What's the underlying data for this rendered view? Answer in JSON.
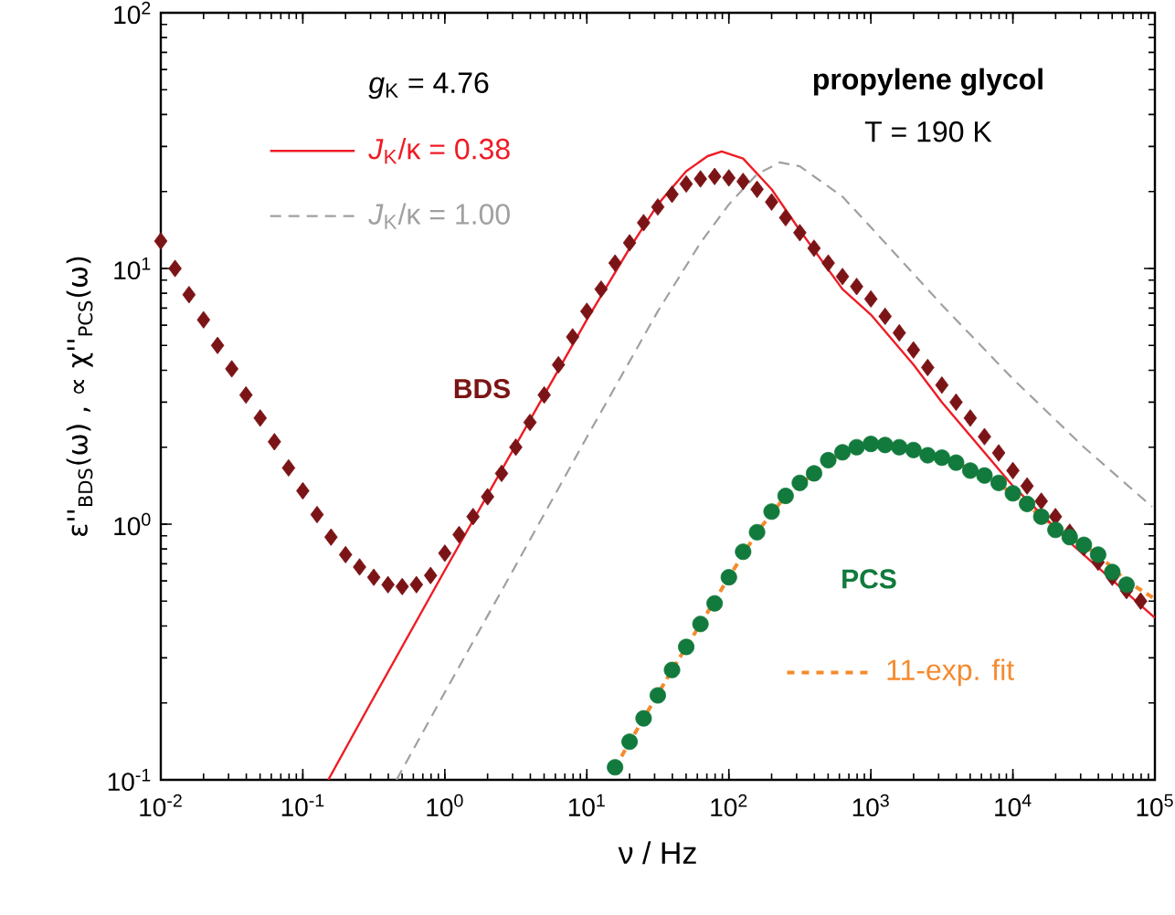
{
  "chart_data": {
    "type": "line",
    "title": "propylene glycol",
    "subtitle": "T = 190 K",
    "xlabel": "ν / Hz",
    "ylabel": "ε''$_{BDS}$(ω) , ∝ χ''$_{PCS}$(ω)",
    "annotations": [
      "*g*$_{K}$ = 4.76"
    ],
    "log": "xy",
    "legend": "left",
    "xlim": [
      0.01,
      100000
    ],
    "ylim": [
      0.1,
      100
    ],
    "xticks": [
      {
        "value": 0.01,
        "label": "10$^{-2}$"
      },
      {
        "value": 0.1,
        "label": "10$^{-1}$"
      },
      {
        "value": 1,
        "label": "10$^{0}$"
      },
      {
        "value": 10,
        "label": "10$^{1}$"
      },
      {
        "value": 100,
        "label": "10$^{2}$"
      },
      {
        "value": 1000,
        "label": "10$^{3}$"
      },
      {
        "value": 10000,
        "label": "10$^{4}$"
      },
      {
        "value": 100000,
        "label": "10$^{5}$"
      }
    ],
    "yticks": [
      {
        "value": 0.1,
        "label": "10$^{-1}$"
      },
      {
        "value": 1,
        "label": "10$^{0}$"
      },
      {
        "value": 10,
        "label": "10$^{1}$"
      },
      {
        "value": 100,
        "label": "10$^{2}$"
      }
    ],
    "series": [
      {
        "name": "BDS",
        "type": "scatter",
        "marker": "diamond",
        "color": "#7b1416",
        "x": [
          0.01,
          0.0126,
          0.0158,
          0.02,
          0.0251,
          0.0316,
          0.0398,
          0.0501,
          0.0631,
          0.0794,
          0.1,
          0.126,
          0.158,
          0.2,
          0.251,
          0.316,
          0.398,
          0.501,
          0.631,
          0.794,
          1,
          1.26,
          1.58,
          2,
          2.51,
          3.16,
          3.98,
          5.01,
          6.31,
          7.94,
          10,
          12.6,
          15.8,
          20,
          25.1,
          31.6,
          39.8,
          50.1,
          63.1,
          79.4,
          100,
          126,
          158,
          200,
          251,
          316,
          398,
          501,
          631,
          794,
          1000,
          1259,
          1585,
          1995,
          2512,
          3162,
          3981,
          5012,
          6310,
          7943,
          10000,
          12590,
          15850,
          19950,
          25120,
          31620,
          39810,
          50120,
          63100,
          79430
        ],
        "values": [
          12.8,
          10.0,
          7.9,
          6.3,
          5.0,
          4.05,
          3.2,
          2.6,
          2.1,
          1.66,
          1.35,
          1.09,
          0.89,
          0.76,
          0.68,
          0.62,
          0.58,
          0.57,
          0.58,
          0.63,
          0.77,
          0.91,
          1.07,
          1.28,
          1.58,
          2.0,
          2.5,
          3.2,
          4.2,
          5.4,
          6.8,
          8.3,
          10.5,
          12.6,
          15.1,
          17.4,
          19.5,
          21.4,
          22.4,
          22.9,
          22.6,
          21.9,
          20.4,
          18.2,
          15.8,
          13.8,
          12.0,
          10.5,
          9.3,
          8.5,
          7.6,
          6.5,
          5.6,
          4.8,
          4.1,
          3.5,
          3.0,
          2.6,
          2.2,
          1.9,
          1.62,
          1.41,
          1.23,
          1.07,
          0.93,
          0.81,
          0.71,
          0.62,
          0.55,
          0.5
        ]
      },
      {
        "name": "PCS",
        "type": "scatter",
        "marker": "circle",
        "color": "#117a3c",
        "x": [
          15.8,
          20,
          25.1,
          31.6,
          39.8,
          50.1,
          63.1,
          79.4,
          100,
          126,
          158,
          200,
          251,
          316,
          398,
          501,
          631,
          794,
          1000,
          1259,
          1585,
          1995,
          2512,
          3162,
          3981,
          5012,
          6310,
          7943,
          10000,
          12590,
          15850,
          19950,
          25120,
          31620,
          39810,
          50120,
          63100
        ],
        "values": [
          0.112,
          0.141,
          0.174,
          0.214,
          0.269,
          0.331,
          0.407,
          0.49,
          0.62,
          0.78,
          0.93,
          1.12,
          1.29,
          1.45,
          1.58,
          1.78,
          1.91,
          2.0,
          2.06,
          2.04,
          2.0,
          1.95,
          1.86,
          1.82,
          1.74,
          1.62,
          1.55,
          1.45,
          1.32,
          1.2,
          1.07,
          0.95,
          0.89,
          0.83,
          0.76,
          0.65,
          0.58
        ]
      },
      {
        "name": "11-exp. fit",
        "type": "line",
        "line_style": "dashed",
        "color": "#f58a2d",
        "x": [
          15.8,
          25.1,
          39.8,
          63.1,
          100,
          158,
          251,
          398,
          631,
          1000,
          1585,
          2512,
          3981,
          6310,
          10000,
          15850,
          25120,
          39810,
          63100,
          100000
        ],
        "values": [
          0.112,
          0.174,
          0.269,
          0.407,
          0.62,
          0.93,
          1.29,
          1.58,
          1.91,
          2.06,
          2.0,
          1.86,
          1.74,
          1.55,
          1.32,
          1.07,
          0.89,
          0.76,
          0.6,
          0.51
        ]
      },
      {
        "name": "*J*$_{K}$/κ = 0.38",
        "type": "line",
        "line_style": "solid",
        "color": "#ee1c25",
        "x": [
          0.151,
          0.316,
          1,
          3.16,
          10,
          20,
          31.6,
          50.1,
          70.8,
          89.1,
          126,
          200,
          316,
          631,
          1000,
          2000,
          3162,
          10000,
          25120,
          100000
        ],
        "values": [
          0.1,
          0.21,
          0.66,
          2.04,
          6.3,
          12.0,
          17.8,
          24.0,
          27.5,
          28.7,
          26.9,
          20.4,
          14.1,
          8.3,
          6.6,
          4.2,
          3.0,
          1.41,
          0.85,
          0.43
        ]
      },
      {
        "name": "*J*$_{K}$/κ = 1.00",
        "type": "line",
        "line_style": "dashed",
        "color": "#a0a0a0",
        "x": [
          0.457,
          1,
          3.16,
          10,
          31.6,
          63.1,
          100,
          158,
          229,
          316,
          631,
          1000,
          3162,
          10000,
          31620,
          95500
        ],
        "values": [
          0.1,
          0.22,
          0.69,
          2.19,
          6.8,
          12.6,
          17.8,
          23.4,
          26.0,
          25.1,
          19.1,
          14.5,
          7.2,
          3.7,
          2.0,
          1.17
        ]
      }
    ]
  }
}
